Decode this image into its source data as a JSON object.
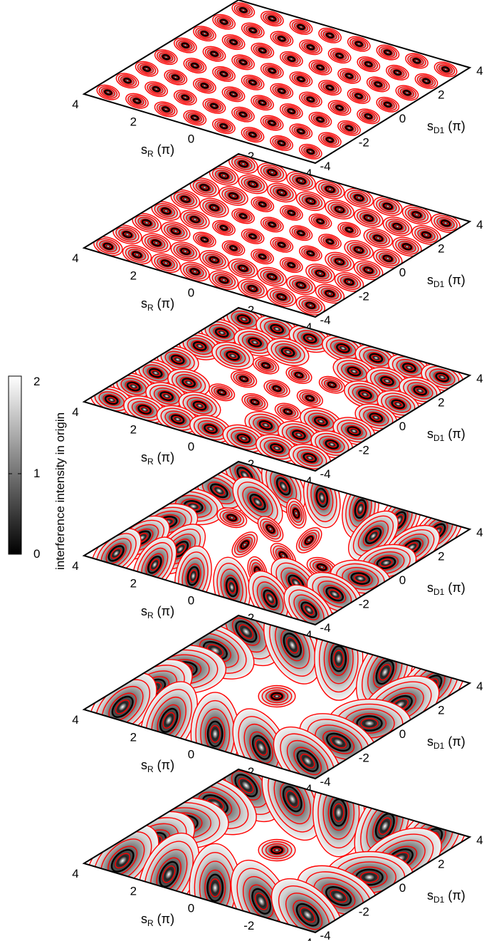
{
  "chart_data": {
    "type": "heatmap",
    "colorbar": {
      "label": "interference intensity in origin",
      "ticks": [
        {
          "value": 2,
          "label": "2"
        },
        {
          "value": 1,
          "label": "1"
        },
        {
          "value": 0,
          "label": "0"
        }
      ],
      "range": [
        0,
        2
      ],
      "colormap": [
        "#000000",
        "#ffffff"
      ]
    },
    "x_axis": {
      "label_main": "s",
      "label_sub": "R",
      "label_unit": " (π)",
      "range": [
        -4,
        4
      ],
      "tick_labels": [
        "4",
        "2",
        "0",
        "-2",
        "-4"
      ]
    },
    "y_axis": {
      "label_main": "s",
      "label_sub": "D1",
      "label_unit": " (π)",
      "range": [
        -4,
        4
      ],
      "tick_labels": [
        "-4",
        "-2",
        "0",
        "2",
        "4"
      ]
    },
    "contour_line_color": "#ff0000",
    "frame_color": "#000000",
    "panels": [
      {
        "plane_freq": 1.0,
        "radial_mix": 0.0
      },
      {
        "plane_freq": 1.0,
        "radial_mix": 0.2
      },
      {
        "plane_freq": 0.85,
        "radial_mix": 0.45
      },
      {
        "plane_freq": 0.7,
        "radial_mix": 0.7
      },
      {
        "plane_freq": 0.55,
        "radial_mix": 0.9
      },
      {
        "plane_freq": 0.5,
        "radial_mix": 1.0
      }
    ]
  }
}
